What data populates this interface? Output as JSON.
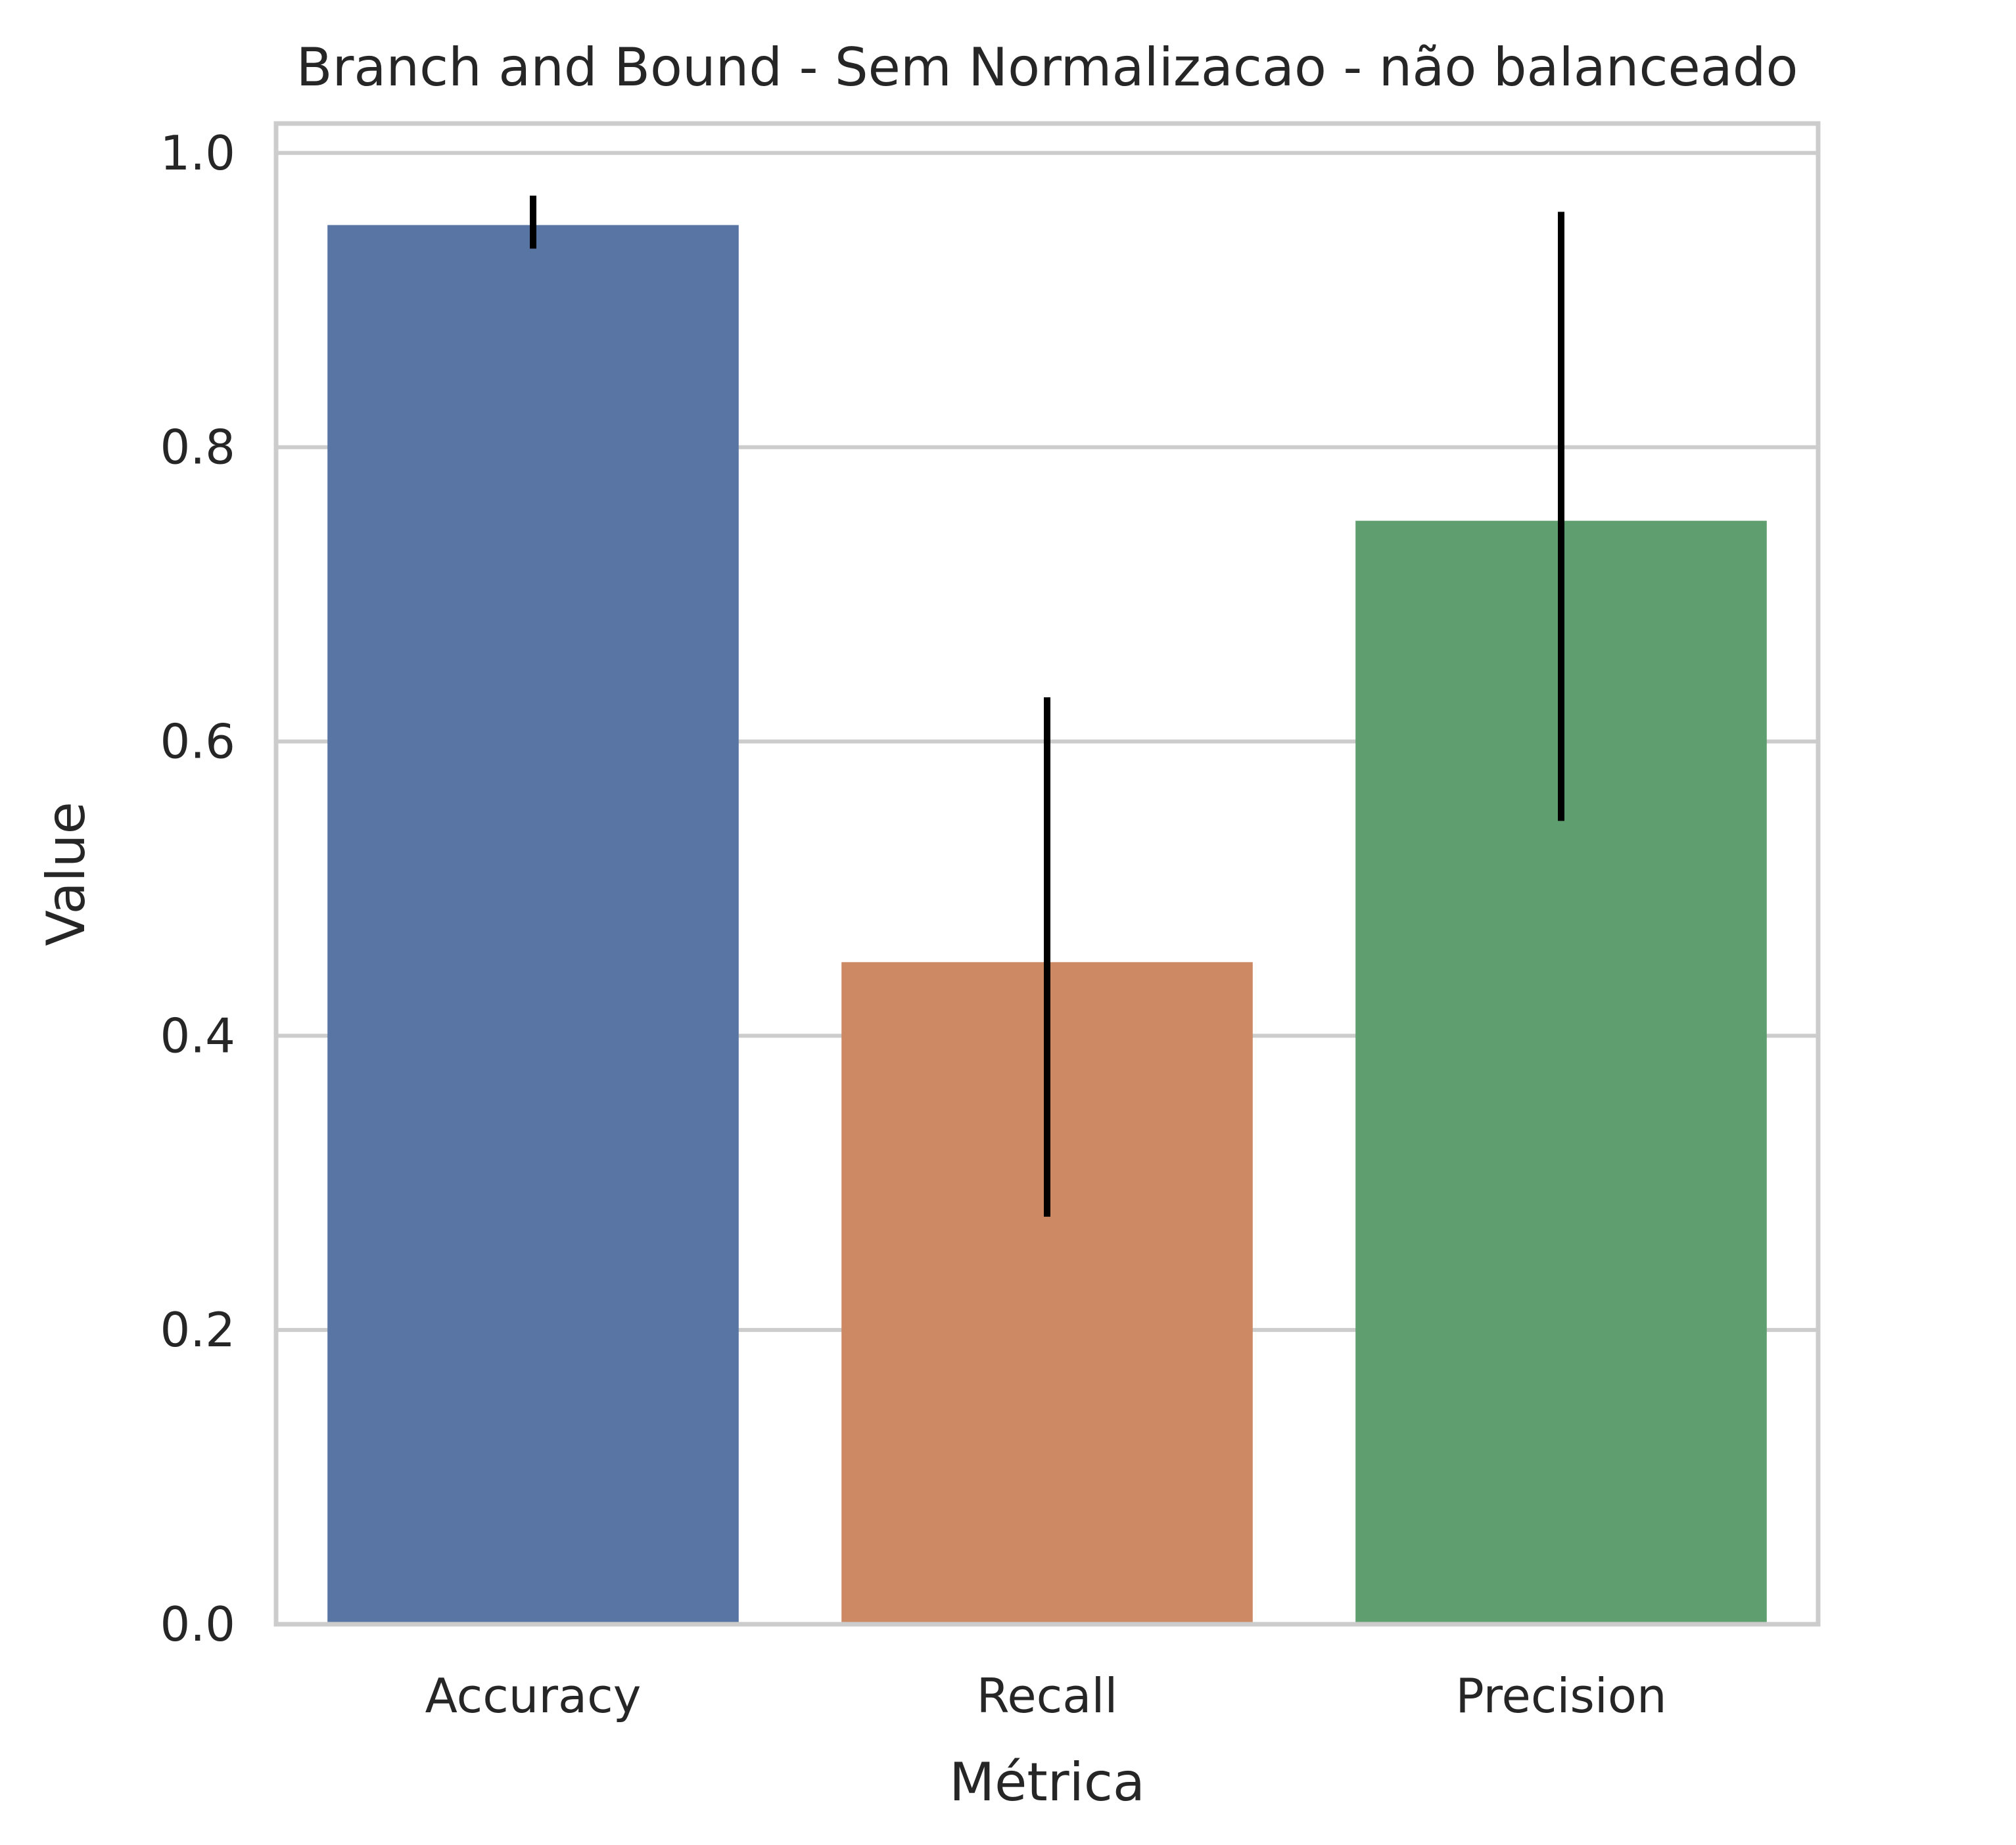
{
  "chart_data": {
    "type": "bar",
    "title": "Branch and Bound - Sem Normalizacao - não balanceado",
    "xlabel": "Métrica",
    "ylabel": "Value",
    "categories": [
      "Accuracy",
      "Recall",
      "Precision"
    ],
    "values": [
      0.951,
      0.45,
      0.75
    ],
    "error_low": [
      0.935,
      0.277,
      0.546
    ],
    "error_high": [
      0.971,
      0.63,
      0.96
    ],
    "ylim": [
      0,
      1.02
    ],
    "yticks": [
      0.0,
      0.2,
      0.4,
      0.6,
      0.8,
      1.0
    ],
    "ytick_labels": [
      "0.0",
      "0.2",
      "0.4",
      "0.6",
      "0.8",
      "1.0"
    ],
    "grid": "horizontal",
    "colors": [
      "#5975a4",
      "#cc8963",
      "#5f9e6e"
    ],
    "error_color": "#000000",
    "grid_color": "#cccccc"
  }
}
